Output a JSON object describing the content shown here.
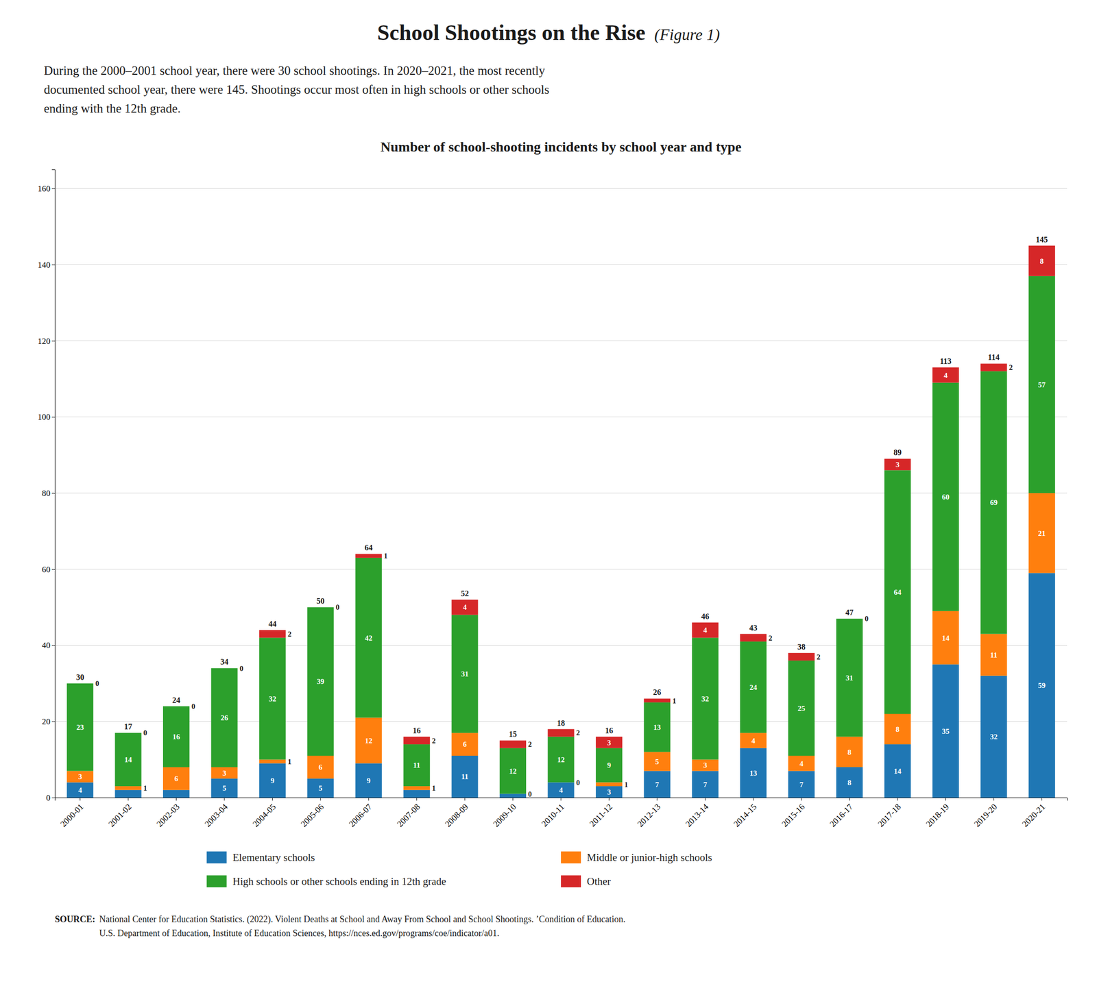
{
  "chart_data": {
    "type": "bar",
    "stacked": true,
    "figure_title": "School Shootings on the Rise",
    "figure_note": "(Figure 1)",
    "subtitle": "During the 2000–2001 school year, there were 30 school shootings. In 2020–2021, the most recently\ndocumented school year, there were 145. Shootings occur most often in high schools or other schools\nending with the 12th grade.",
    "title": "Number of school-shooting incidents by school year and type",
    "source_label": "SOURCE:",
    "source": "National Center for Education Statistics. (2022). Violent Deaths at School and Away From School and School Shootings. ’Condition of Education.\nU.S. Department of Education, Institute of Education Sciences, https://nces.ed.gov/programs/coe/indicator/a01.",
    "categories": [
      "2000-01",
      "2001-02",
      "2002-03",
      "2003-04",
      "2004-05",
      "2005-06",
      "2006-07",
      "2007-08",
      "2008-09",
      "2009-10",
      "2010-11",
      "2011-12",
      "2012-13",
      "2013-14",
      "2014-15",
      "2015-16",
      "2016-17",
      "2017-18",
      "2018-19",
      "2019-20",
      "2020-21"
    ],
    "series": [
      {
        "name": "Elementary schools",
        "values": [
          4,
          2,
          2,
          5,
          9,
          5,
          9,
          2,
          11,
          1,
          4,
          3,
          7,
          7,
          13,
          7,
          8,
          14,
          35,
          32,
          59
        ],
        "value_labels": [
          "4",
          null,
          null,
          "5",
          "9",
          "5",
          "9",
          null,
          "11",
          null,
          "4",
          "3",
          "7",
          "7",
          "13",
          "7",
          "8",
          "14",
          "35",
          "32",
          "59"
        ]
      },
      {
        "name": "Middle or junior-high schools",
        "values": [
          3,
          1,
          6,
          3,
          1,
          6,
          12,
          1,
          6,
          0,
          0,
          1,
          5,
          3,
          4,
          4,
          8,
          8,
          14,
          11,
          21
        ]
      },
      {
        "name": "High schools or other schools ending in 12th grade",
        "values": [
          23,
          14,
          16,
          26,
          32,
          39,
          42,
          11,
          31,
          12,
          12,
          9,
          13,
          32,
          24,
          25,
          31,
          64,
          60,
          69,
          57
        ]
      },
      {
        "name": "Other",
        "values": [
          0,
          0,
          0,
          0,
          2,
          0,
          1,
          2,
          4,
          2,
          2,
          3,
          1,
          4,
          2,
          2,
          0,
          3,
          4,
          2,
          8
        ]
      }
    ],
    "totals": [
      30,
      17,
      24,
      34,
      44,
      50,
      64,
      16,
      52,
      15,
      18,
      16,
      26,
      46,
      43,
      38,
      47,
      89,
      113,
      114,
      145
    ],
    "ylim": [
      0,
      165
    ],
    "yticks": [
      0,
      20,
      40,
      60,
      80,
      100,
      120,
      140,
      160
    ],
    "grid": true,
    "data_labels": true,
    "legend": "bottom"
  }
}
